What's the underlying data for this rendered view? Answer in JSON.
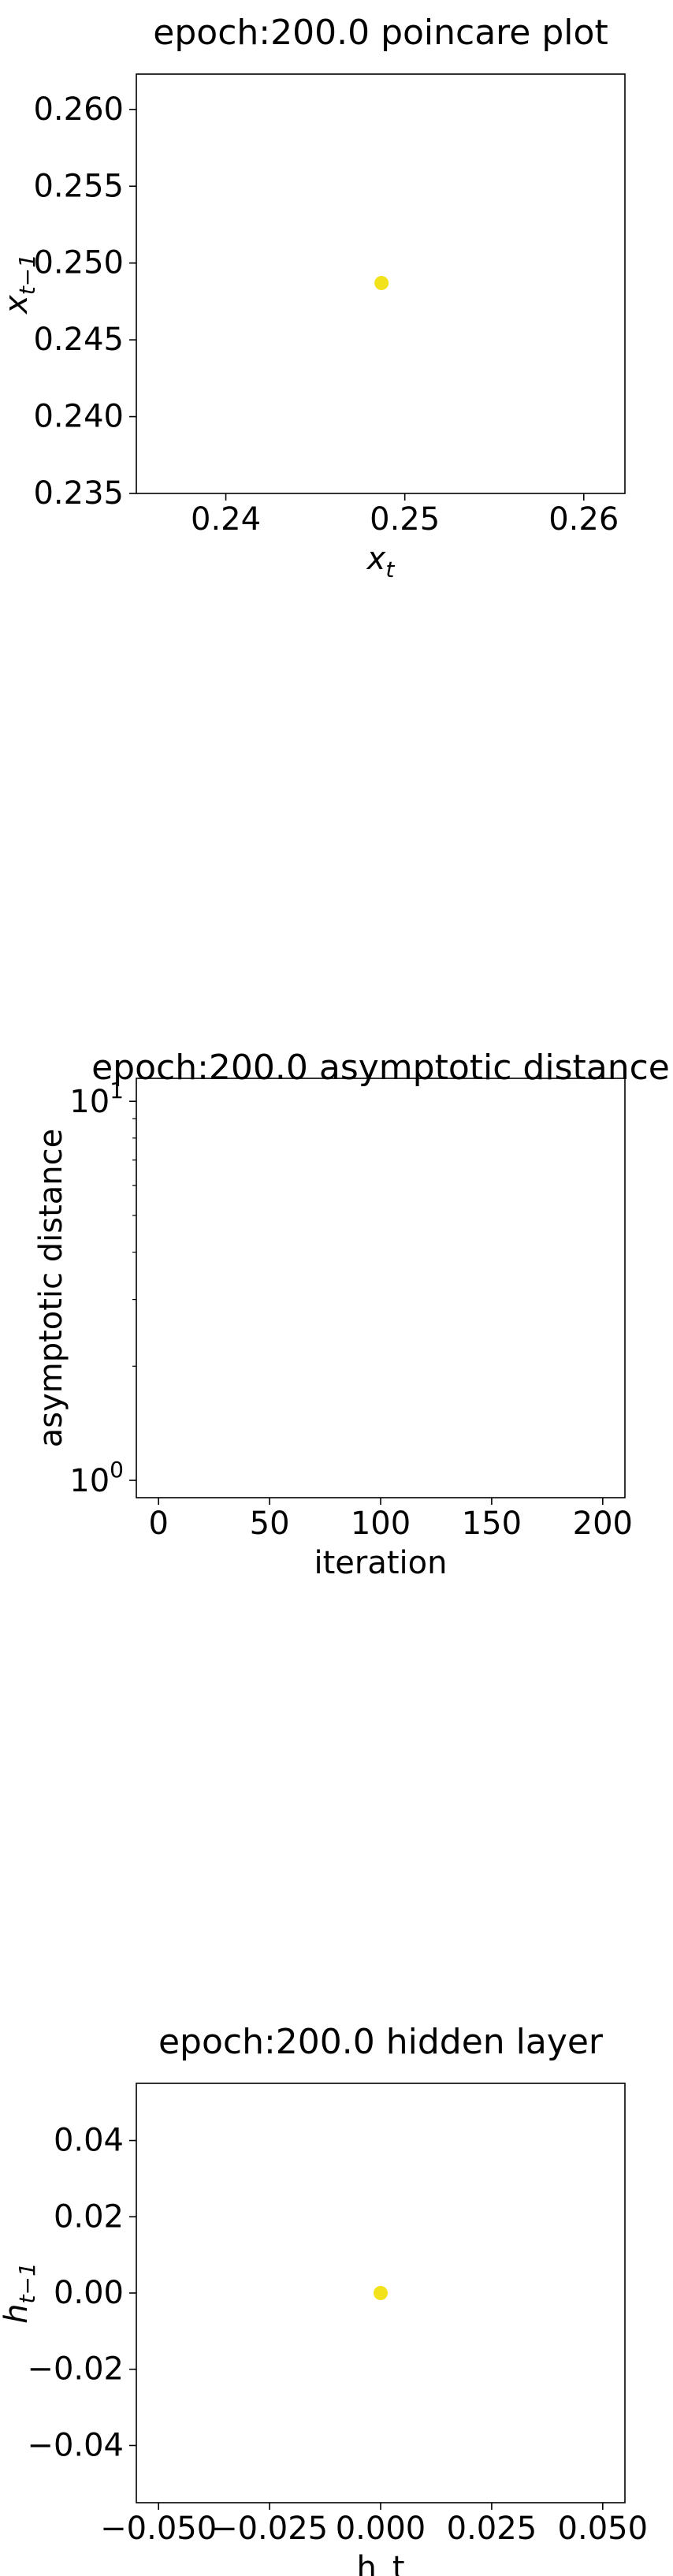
{
  "chart_data": [
    {
      "type": "scatter",
      "title": "epoch:200.0 poincare plot",
      "xlabel_base": "x",
      "xlabel_sub": "t",
      "ylabel_base": "x",
      "ylabel_sub": "t−1",
      "xlim": [
        0.235,
        0.2623
      ],
      "ylim": [
        0.235,
        0.2623
      ],
      "xticks": [
        0.24,
        0.25,
        0.26
      ],
      "xtick_labels": [
        "0.24",
        "0.25",
        "0.26"
      ],
      "yticks": [
        0.235,
        0.24,
        0.245,
        0.25,
        0.255,
        0.26
      ],
      "ytick_labels": [
        "0.235",
        "0.240",
        "0.245",
        "0.250",
        "0.255",
        "0.260"
      ],
      "points": [
        {
          "x": 0.2487,
          "y": 0.2487
        }
      ],
      "marker_color": "#f1e21c",
      "grid": false
    },
    {
      "type": "line",
      "title": "epoch:200.0 asymptotic distance",
      "xlabel": "iteration",
      "ylabel": "asymptotic distance",
      "yscale": "log",
      "xlim": [
        -10,
        210
      ],
      "ylim": [
        0.9,
        11.5
      ],
      "xticks": [
        0,
        50,
        100,
        150,
        200
      ],
      "xtick_labels": [
        "0",
        "50",
        "100",
        "150",
        "200"
      ],
      "yticks": [
        1,
        10
      ],
      "ytick_labels": [
        {
          "base": "10",
          "exp": "0"
        },
        {
          "base": "10",
          "exp": "1"
        }
      ],
      "series": [],
      "grid": false
    },
    {
      "type": "scatter",
      "title": "epoch:200.0 hidden layer",
      "xlabel": "h_t",
      "ylabel_base": "h",
      "ylabel_sub": "t−1",
      "xlim": [
        -0.055,
        0.055
      ],
      "ylim": [
        -0.055,
        0.055
      ],
      "xticks": [
        -0.05,
        -0.025,
        0,
        0.025,
        0.05
      ],
      "xtick_labels": [
        "−0.050",
        "−0.025",
        "0.000",
        "0.025",
        "0.050"
      ],
      "yticks": [
        -0.04,
        -0.02,
        0,
        0.02,
        0.04
      ],
      "ytick_labels": [
        "−0.04",
        "−0.02",
        "0.00",
        "0.02",
        "0.04"
      ],
      "points": [
        {
          "x": 0,
          "y": 0
        }
      ],
      "marker_color": "#f1e21c",
      "grid": false
    }
  ]
}
